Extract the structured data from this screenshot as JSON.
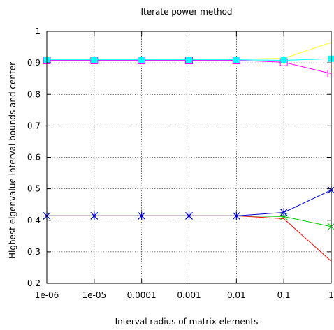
{
  "chart_data": {
    "type": "line",
    "title": "Iterate power method",
    "xlabel": "Interval radius of matrix elements",
    "ylabel": "Highest eigenvalue interval bounds and center",
    "x_scale": "log",
    "x": [
      1e-06,
      1e-05,
      0.0001,
      0.001,
      0.01,
      0.1,
      1
    ],
    "x_tick_labels": [
      "1e-06",
      "1e-05",
      "0.0001",
      "0.001",
      "0.01",
      "0.1",
      "1"
    ],
    "ylim": [
      0.2,
      1.0
    ],
    "y_ticks": [
      0.2,
      0.3,
      0.4,
      0.5,
      0.6,
      0.7,
      0.8,
      0.9,
      1.0
    ],
    "y_tick_labels": [
      "0.2",
      "0.3",
      "0.4",
      "0.5",
      "0.6",
      "0.7",
      "0.8",
      "0.9",
      "1"
    ],
    "grid": true,
    "series": [
      {
        "color": "#ffff00",
        "marker": "none",
        "values": [
          0.912,
          0.912,
          0.912,
          0.912,
          0.912,
          0.914,
          0.965
        ]
      },
      {
        "color": "#ff00ff",
        "marker": "open-square",
        "values": [
          0.908,
          0.908,
          0.908,
          0.908,
          0.908,
          0.902,
          0.866
        ]
      },
      {
        "color": "#00ffff",
        "marker": "filled-square",
        "values": [
          0.91,
          0.91,
          0.91,
          0.91,
          0.91,
          0.908,
          0.913
        ]
      },
      {
        "color": "#ff0000",
        "marker": "none",
        "values": [
          0.414,
          0.414,
          0.414,
          0.414,
          0.414,
          0.405,
          0.27
        ]
      },
      {
        "color": "#00cc00",
        "marker": "x",
        "values": [
          0.414,
          0.414,
          0.414,
          0.414,
          0.414,
          0.412,
          0.38
        ]
      },
      {
        "color": "#0000cc",
        "marker": "star",
        "values": [
          0.414,
          0.414,
          0.414,
          0.414,
          0.414,
          0.425,
          0.496
        ]
      }
    ]
  }
}
